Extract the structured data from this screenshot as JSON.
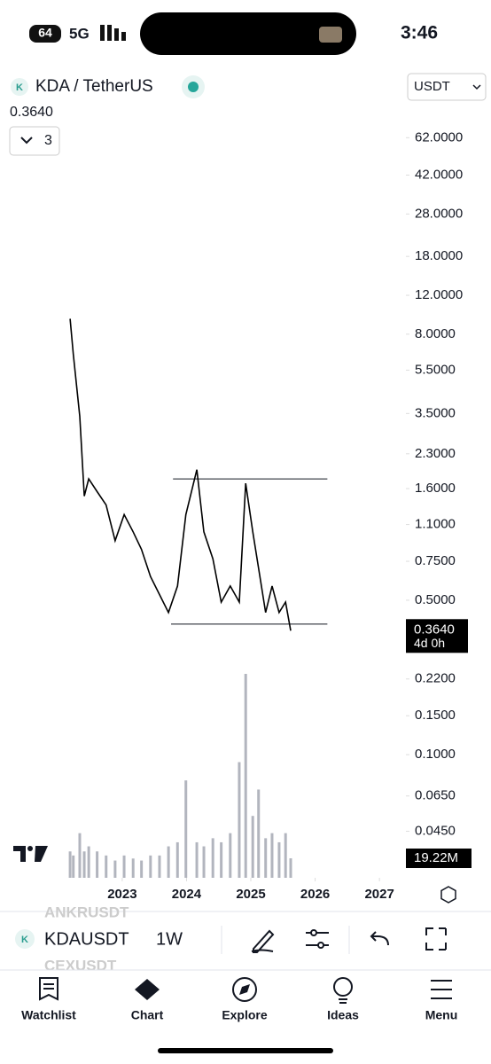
{
  "status_bar": {
    "battery": "64",
    "network": "5G",
    "time": "3:46"
  },
  "header": {
    "symbol": "KDA / TetherUS",
    "currency": "USDT",
    "last_price": "0.3640",
    "indicators_count": "3"
  },
  "chart_data": {
    "type": "line",
    "scale": "log",
    "color": "#000000",
    "x": [
      2022.19,
      2022.24,
      2022.34,
      2022.41,
      2022.48,
      2022.61,
      2022.75,
      2022.89,
      2023.03,
      2023.17,
      2023.3,
      2023.44,
      2023.58,
      2023.72,
      2023.86,
      2023.99,
      2024.16,
      2024.27,
      2024.41,
      2024.54,
      2024.68,
      2024.82,
      2024.92,
      2025.03,
      2025.12,
      2025.23,
      2025.33,
      2025.44,
      2025.54,
      2025.62
    ],
    "values": [
      9.4,
      6.5,
      3.4,
      1.48,
      1.77,
      1.55,
      1.35,
      0.93,
      1.22,
      1.02,
      0.85,
      0.64,
      0.53,
      0.44,
      0.58,
      1.22,
      1.95,
      1.02,
      0.77,
      0.49,
      0.58,
      0.49,
      1.69,
      1.02,
      0.7,
      0.44,
      0.58,
      0.44,
      0.49,
      0.364
    ],
    "volume": [
      26,
      22,
      44,
      26,
      31,
      26,
      22,
      17,
      22,
      19,
      17,
      22,
      22,
      31,
      35,
      96,
      35,
      31,
      39,
      35,
      44,
      114,
      201,
      61,
      87,
      39,
      44,
      35,
      44,
      19.22
    ],
    "volume_ylim": [
      0,
      201
    ],
    "volume_label": {
      "value": 19.22,
      "label": "19.22M"
    },
    "xlim": [
      2021.1,
      2027.37
    ],
    "xticks": [
      2023,
      2024,
      2025,
      2026,
      2027
    ],
    "ylim": [
      0.0277,
      90
    ],
    "yticks": [
      {
        "value": 62,
        "label": "62.0000"
      },
      {
        "value": 42,
        "label": "42.0000"
      },
      {
        "value": 28,
        "label": "28.0000"
      },
      {
        "value": 18,
        "label": "18.0000"
      },
      {
        "value": 12,
        "label": "12.0000"
      },
      {
        "value": 8,
        "label": "8.0000"
      },
      {
        "value": 5.5,
        "label": "5.5000"
      },
      {
        "value": 3.5,
        "label": "3.5000"
      },
      {
        "value": 2.3,
        "label": "2.3000"
      },
      {
        "value": 1.6,
        "label": "1.6000"
      },
      {
        "value": 1.1,
        "label": "1.1000"
      },
      {
        "value": 0.75,
        "label": "0.7500"
      },
      {
        "value": 0.5,
        "label": "0.5000"
      },
      {
        "value": 0.22,
        "label": "0.2200"
      },
      {
        "value": 0.15,
        "label": "0.1500"
      },
      {
        "value": 0.1,
        "label": "0.1000"
      },
      {
        "value": 0.065,
        "label": "0.0650"
      },
      {
        "value": 0.045,
        "label": "0.0450"
      }
    ],
    "price_label": {
      "value": 0.364,
      "label": "0.3640"
    },
    "countdown": "4d 0h",
    "levels": [
      {
        "value": 1.77,
        "from": 2023.79,
        "to": 2026.19
      },
      {
        "value": 0.39,
        "from": 2023.76,
        "to": 2026.19
      }
    ]
  },
  "toolbar": {
    "prev_symbol": "ANKRUSDT",
    "symbol": "KDAUSDT",
    "interval": "1W",
    "next_symbol": "CEXUSDT"
  },
  "tabs": [
    "Watchlist",
    "Chart",
    "Explore",
    "Ideas",
    "Menu"
  ]
}
